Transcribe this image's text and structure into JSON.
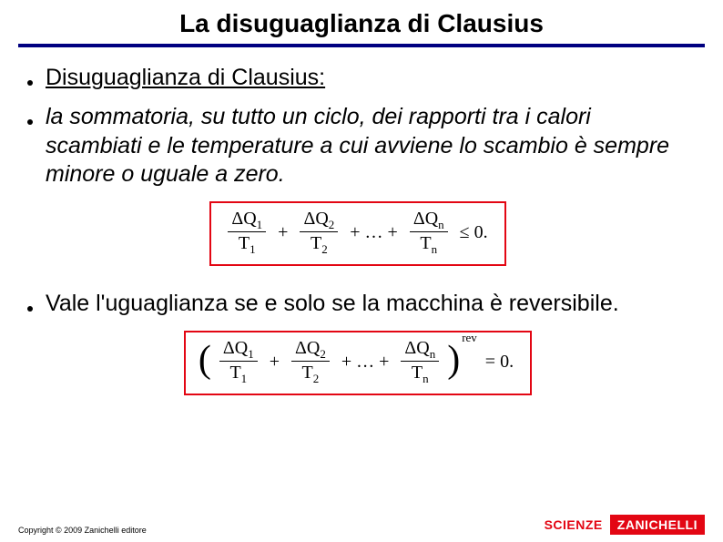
{
  "title": "La disuguaglianza di Clausius",
  "bullets": {
    "b1": "Disuguaglianza di Clausius:",
    "b2": "la sommatoria, su tutto un ciclo, dei rapporti tra i calori scambiati e le temperature a cui avviene lo scambio è sempre minore o uguale a zero.",
    "b3": "Vale l'uguaglianza se e solo se la macchina è reversibile."
  },
  "formula1": {
    "terms": [
      {
        "num": "ΔQ",
        "numSub": "1",
        "den": "T",
        "denSub": "1"
      },
      {
        "num": "ΔQ",
        "numSub": "2",
        "den": "T",
        "denSub": "2"
      },
      {
        "num": "ΔQ",
        "numSub": "n",
        "den": "T",
        "denSub": "n"
      }
    ],
    "middle": "+ … +",
    "rel": "≤ 0.",
    "border_color": "#e30613"
  },
  "formula2": {
    "terms": [
      {
        "num": "ΔQ",
        "numSub": "1",
        "den": "T",
        "denSub": "1"
      },
      {
        "num": "ΔQ",
        "numSub": "2",
        "den": "T",
        "denSub": "2"
      },
      {
        "num": "ΔQ",
        "numSub": "n",
        "den": "T",
        "denSub": "n"
      }
    ],
    "middle": "+ … +",
    "sup": "rev",
    "rel": "= 0.",
    "border_color": "#e30613"
  },
  "footer": {
    "copyright": "Copyright © 2009 Zanichelli editore",
    "brand_left": "SCIENZE",
    "brand_right": "ZANICHELLI"
  },
  "colors": {
    "title_rule": "#000080",
    "accent_red": "#e30613",
    "text": "#000000",
    "background": "#ffffff"
  }
}
